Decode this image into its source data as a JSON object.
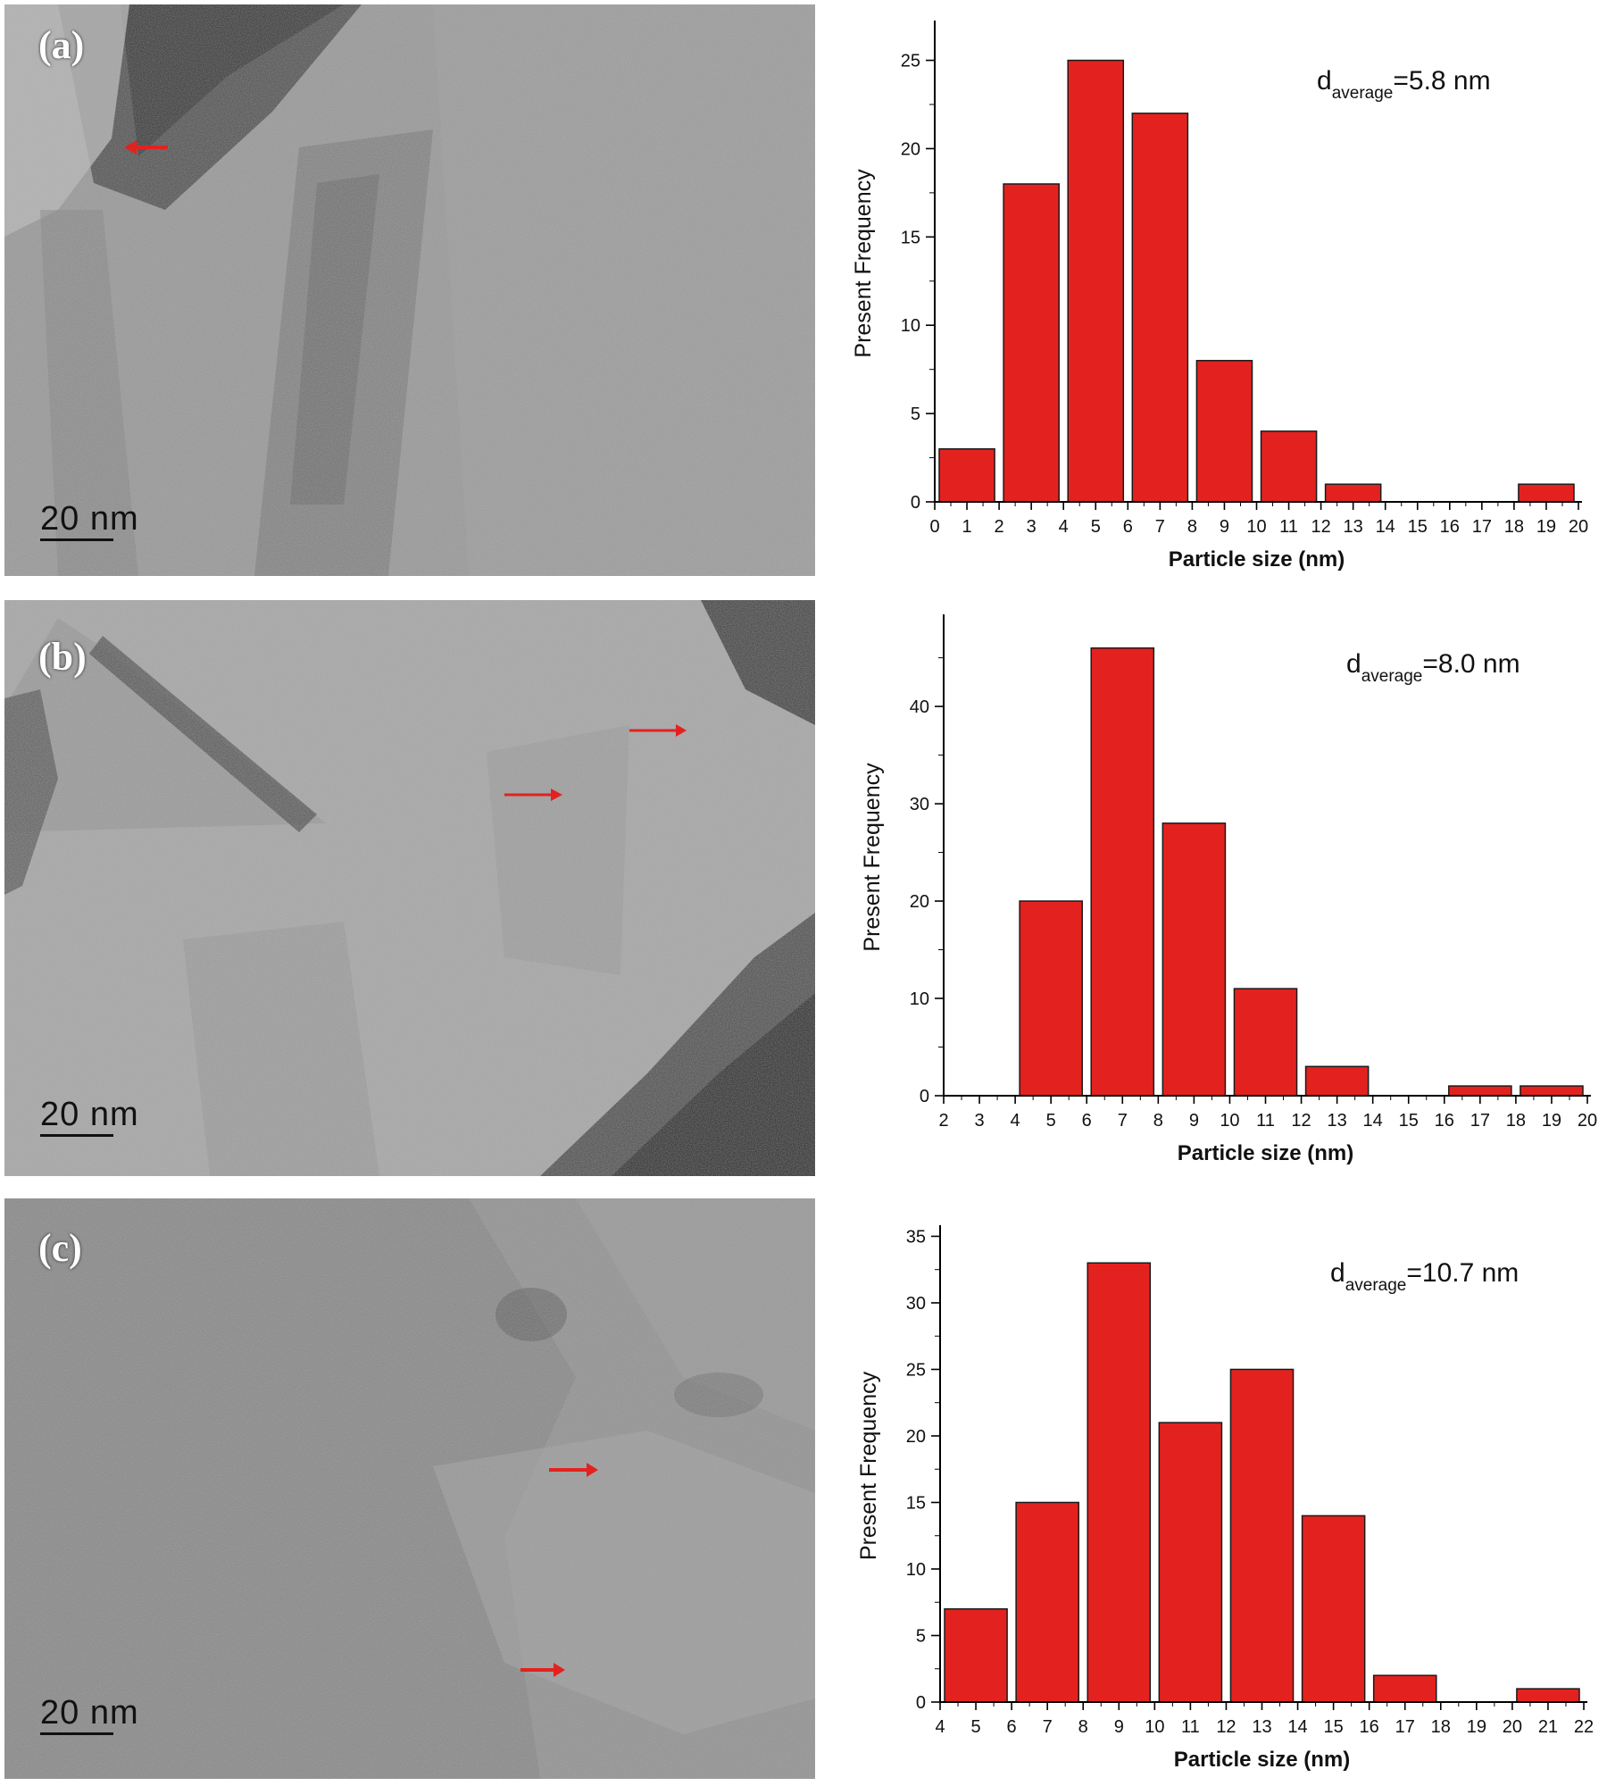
{
  "panels": [
    {
      "label": "(a)",
      "scale_text": "20 nm"
    },
    {
      "label": "(b)",
      "scale_text": "20 nm"
    },
    {
      "label": "(c)",
      "scale_text": "20 nm"
    }
  ],
  "colors": {
    "bar": "#e3221f",
    "arrow": "#e3221f"
  },
  "chart_data": [
    {
      "type": "bar",
      "panel": "(a)",
      "xlabel": "Particle size (nm)",
      "ylabel": "Present Frequency",
      "annotation": {
        "base": "d",
        "sub": "average",
        "value": "=5.8 nm"
      },
      "xlim": [
        0,
        20
      ],
      "ylim": [
        0,
        27
      ],
      "xticks": [
        0,
        1,
        2,
        3,
        4,
        5,
        6,
        7,
        8,
        9,
        10,
        11,
        12,
        13,
        14,
        15,
        16,
        17,
        18,
        19,
        20
      ],
      "yticks": [
        0,
        5,
        10,
        15,
        20,
        25
      ],
      "bins": [
        {
          "start": 0,
          "end": 2,
          "value": 3
        },
        {
          "start": 2,
          "end": 4,
          "value": 18
        },
        {
          "start": 4,
          "end": 6,
          "value": 25
        },
        {
          "start": 6,
          "end": 8,
          "value": 22
        },
        {
          "start": 8,
          "end": 10,
          "value": 8
        },
        {
          "start": 10,
          "end": 12,
          "value": 4
        },
        {
          "start": 12,
          "end": 14,
          "value": 1
        },
        {
          "start": 14,
          "end": 16,
          "value": 0
        },
        {
          "start": 16,
          "end": 18,
          "value": 0
        },
        {
          "start": 18,
          "end": 20,
          "value": 1
        }
      ]
    },
    {
      "type": "bar",
      "panel": "(b)",
      "xlabel": "Particle size (nm)",
      "ylabel": "Present Frequency",
      "annotation": {
        "base": "d",
        "sub": "average",
        "value": "=8.0 nm"
      },
      "xlim": [
        2,
        20
      ],
      "ylim": [
        0,
        49
      ],
      "xticks": [
        2,
        3,
        4,
        5,
        6,
        7,
        8,
        9,
        10,
        11,
        12,
        13,
        14,
        15,
        16,
        17,
        18,
        19,
        20
      ],
      "yticks": [
        0,
        10,
        20,
        30,
        40
      ],
      "bins": [
        {
          "start": 4,
          "end": 6,
          "value": 20
        },
        {
          "start": 6,
          "end": 8,
          "value": 46
        },
        {
          "start": 8,
          "end": 10,
          "value": 28
        },
        {
          "start": 10,
          "end": 12,
          "value": 11
        },
        {
          "start": 12,
          "end": 14,
          "value": 3
        },
        {
          "start": 14,
          "end": 16,
          "value": 0
        },
        {
          "start": 16,
          "end": 18,
          "value": 1
        },
        {
          "start": 18,
          "end": 20,
          "value": 1
        }
      ]
    },
    {
      "type": "bar",
      "panel": "(c)",
      "xlabel": "Particle size (nm)",
      "ylabel": "Present Frequency",
      "annotation": {
        "base": "d",
        "sub": "average",
        "value": "=10.7 nm"
      },
      "xlim": [
        4,
        22
      ],
      "ylim": [
        0,
        35.5
      ],
      "xticks": [
        4,
        5,
        6,
        7,
        8,
        9,
        10,
        11,
        12,
        13,
        14,
        15,
        16,
        17,
        18,
        19,
        20,
        21,
        22
      ],
      "yticks": [
        0,
        5,
        10,
        15,
        20,
        25,
        30,
        35
      ],
      "bins": [
        {
          "start": 4,
          "end": 6,
          "value": 7
        },
        {
          "start": 6,
          "end": 8,
          "value": 15
        },
        {
          "start": 8,
          "end": 10,
          "value": 33
        },
        {
          "start": 10,
          "end": 12,
          "value": 21
        },
        {
          "start": 12,
          "end": 14,
          "value": 25
        },
        {
          "start": 14,
          "end": 16,
          "value": 14
        },
        {
          "start": 16,
          "end": 18,
          "value": 2
        },
        {
          "start": 18,
          "end": 20,
          "value": 0
        },
        {
          "start": 20,
          "end": 22,
          "value": 1
        }
      ]
    }
  ]
}
